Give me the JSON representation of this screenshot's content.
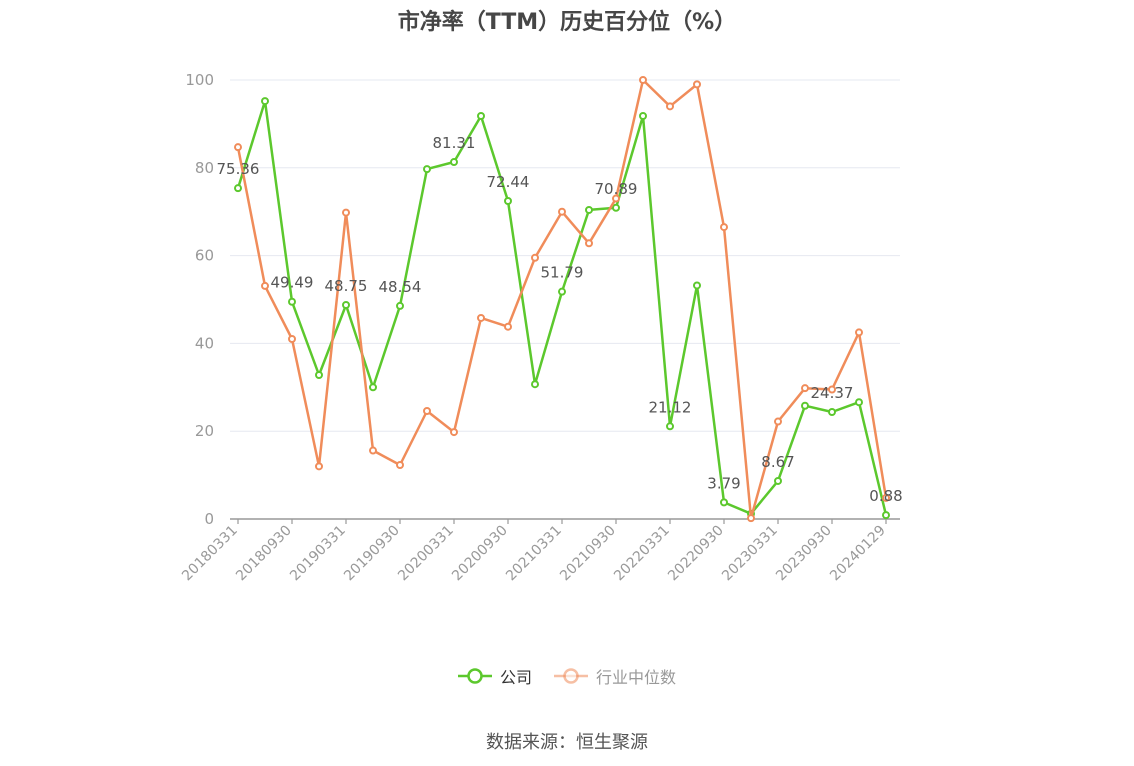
{
  "title": "市净率（TTM）历史百分位（%）",
  "source_text": "数据来源：恒生聚源",
  "colors": {
    "company": "#5cc82d",
    "industry": "#f08c5a",
    "grid": "#e6e8f0",
    "axis": "#999999",
    "tick_text": "#999999",
    "label_text": "#555555"
  },
  "chart_data": {
    "type": "line",
    "x": [
      "20180331",
      "20180630",
      "20180930",
      "20181231",
      "20190331",
      "20190630",
      "20190930",
      "20191231",
      "20200331",
      "20200630",
      "20200930",
      "20201231",
      "20210331",
      "20210630",
      "20210930",
      "20211231",
      "20220331",
      "20220630",
      "20220930",
      "20221230",
      "20230331",
      "20230630",
      "20230930",
      "20231229",
      "20240129"
    ],
    "x_tick_labels": [
      "20180331",
      "20180930",
      "20190331",
      "20190930",
      "20200331",
      "20200930",
      "20210331",
      "20210930",
      "20220331",
      "20220930",
      "20230331",
      "20230930",
      "20240129"
    ],
    "y_ticks": [
      0,
      20,
      40,
      60,
      80,
      100
    ],
    "ylim": [
      0,
      100
    ],
    "grid": true,
    "legend_position": "bottom",
    "series": [
      {
        "name": "公司",
        "color": "#5cc82d",
        "values": [
          75.36,
          95.2,
          49.49,
          32.8,
          48.75,
          30.0,
          48.54,
          79.7,
          81.31,
          91.8,
          72.44,
          30.7,
          51.79,
          70.4,
          70.89,
          91.8,
          21.12,
          53.2,
          3.79,
          1.2,
          8.67,
          25.8,
          24.37,
          26.6,
          0.88
        ],
        "labels": [
          "75.36",
          "",
          "49.49",
          "",
          "48.75",
          "",
          "48.54",
          "",
          "81.31",
          "",
          "72.44",
          "",
          "51.79",
          "",
          "70.89",
          "",
          "21.12",
          "",
          "3.79",
          "",
          "8.67",
          "",
          "24.37",
          "",
          "0.88"
        ]
      },
      {
        "name": "行业中位数",
        "color": "#f08c5a",
        "values": [
          84.7,
          53.1,
          41.0,
          12.0,
          69.8,
          15.6,
          12.3,
          24.6,
          19.8,
          45.8,
          43.8,
          59.5,
          70.0,
          62.8,
          73.0,
          100.0,
          94.0,
          99.0,
          66.5,
          0.2,
          22.2,
          29.8,
          29.5,
          42.5,
          4.8
        ],
        "labels": []
      }
    ]
  }
}
